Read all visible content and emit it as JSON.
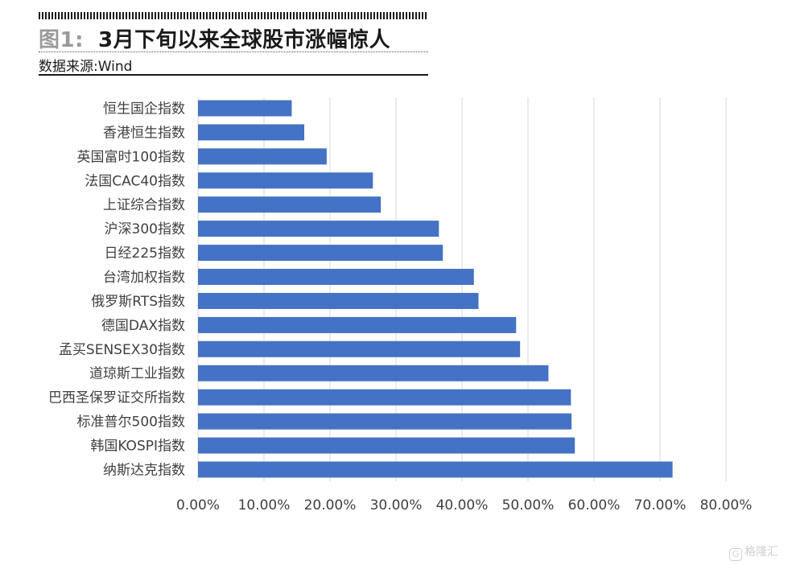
{
  "header": {
    "figure_label": "图1:",
    "title": "3月下旬以来全球股市涨幅惊人",
    "source": "数据来源:Wind"
  },
  "colors": {
    "bar": "#4472c4",
    "grid": "#d9d9d9",
    "text": "#404040"
  },
  "chart_data": {
    "type": "bar",
    "orientation": "horizontal",
    "title": "3月下旬以来全球股市涨幅惊人",
    "xlabel": "",
    "ylabel": "",
    "xlim": [
      0,
      0.8
    ],
    "x_ticks": [
      0,
      0.1,
      0.2,
      0.3,
      0.4,
      0.5,
      0.6,
      0.7,
      0.8
    ],
    "x_tick_labels": [
      "0.00%",
      "10.00%",
      "20.00%",
      "30.00%",
      "40.00%",
      "50.00%",
      "60.00%",
      "70.00%",
      "80.00%"
    ],
    "grid": true,
    "legend": "none",
    "categories": [
      "恒生国企指数",
      "香港恒生指数",
      "英国富时100指数",
      "法国CAC40指数",
      "上证综合指数",
      "沪深300指数",
      "日经225指数",
      "台湾加权指数",
      "俄罗斯RTS指数",
      "德国DAX指数",
      "孟买SENSEX30指数",
      "道琼斯工业指数",
      "巴西圣保罗证交所指数",
      "标准普尔500指数",
      "韩国KOSPI指数",
      "纳斯达克指数"
    ],
    "values": [
      0.142,
      0.161,
      0.195,
      0.265,
      0.277,
      0.365,
      0.371,
      0.418,
      0.425,
      0.482,
      0.488,
      0.531,
      0.565,
      0.566,
      0.571,
      0.719
    ]
  },
  "watermark": {
    "icon": "G",
    "text": "格隆汇"
  }
}
